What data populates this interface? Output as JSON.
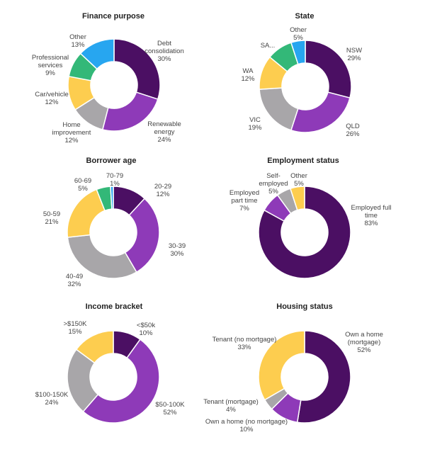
{
  "chart_data": [
    {
      "type": "donut",
      "title": "Finance purpose",
      "slices": [
        {
          "label": "Debt consolidation",
          "pct": 30,
          "value_text": "30%",
          "color": "#4b0f63",
          "label_lines": [
            "Debt",
            "consolidation",
            "30%"
          ]
        },
        {
          "label": "Renewable energy",
          "pct": 24,
          "value_text": "24%",
          "color": "#8e3ab8",
          "label_lines": [
            "Renewable",
            "energy",
            "24%"
          ]
        },
        {
          "label": "Home improvement",
          "pct": 12,
          "value_text": "12%",
          "color": "#a8a6a9",
          "label_lines": [
            "Home",
            "improvement",
            "12%"
          ]
        },
        {
          "label": "Car/vehicle",
          "pct": 12,
          "value_text": "12%",
          "color": "#fdcd4f",
          "label_lines": [
            "Car/vehicle",
            "12%"
          ]
        },
        {
          "label": "Professional services",
          "pct": 9,
          "value_text": "9%",
          "color": "#33b878",
          "label_lines": [
            "Professional",
            "services",
            "9%"
          ]
        },
        {
          "label": "Other",
          "pct": 13,
          "value_text": "13%",
          "color": "#27a6f0",
          "label_lines": [
            "Other",
            "13%"
          ]
        }
      ]
    },
    {
      "type": "donut",
      "title": "State",
      "slices": [
        {
          "label": "NSW",
          "pct": 29,
          "value_text": "29%",
          "color": "#4b0f63",
          "label_lines": [
            "NSW",
            "29%"
          ]
        },
        {
          "label": "QLD",
          "pct": 26,
          "value_text": "26%",
          "color": "#8e3ab8",
          "label_lines": [
            "QLD",
            "26%"
          ]
        },
        {
          "label": "VIC",
          "pct": 19,
          "value_text": "19%",
          "color": "#a8a6a9",
          "label_lines": [
            "VIC",
            "19%"
          ]
        },
        {
          "label": "WA",
          "pct": 12,
          "value_text": "12%",
          "color": "#fdcd4f",
          "label_lines": [
            "WA",
            "12%"
          ]
        },
        {
          "label": "SA...",
          "pct": 9,
          "value_text": "",
          "color": "#33b878",
          "label_lines": [
            "SA..."
          ]
        },
        {
          "label": "Other",
          "pct": 5,
          "value_text": "5%",
          "color": "#27a6f0",
          "label_lines": [
            "Other",
            "5%"
          ]
        }
      ]
    },
    {
      "type": "donut",
      "title": "Borrower age",
      "slices": [
        {
          "label": "20-29",
          "pct": 12,
          "value_text": "12%",
          "color": "#4b0f63",
          "label_lines": [
            "20-29",
            "12%"
          ]
        },
        {
          "label": "30-39",
          "pct": 30,
          "value_text": "30%",
          "color": "#8e3ab8",
          "label_lines": [
            "30-39",
            "30%"
          ]
        },
        {
          "label": "40-49",
          "pct": 32,
          "value_text": "32%",
          "color": "#a8a6a9",
          "label_lines": [
            "40-49",
            "32%"
          ]
        },
        {
          "label": "50-59",
          "pct": 21,
          "value_text": "21%",
          "color": "#fdcd4f",
          "label_lines": [
            "50-59",
            "21%"
          ]
        },
        {
          "label": "60-69",
          "pct": 5,
          "value_text": "5%",
          "color": "#33b878",
          "label_lines": [
            "60-69",
            "5%"
          ]
        },
        {
          "label": "70-79",
          "pct": 1,
          "value_text": "1%",
          "color": "#27a6f0",
          "label_lines": [
            "70-79",
            "1%"
          ]
        }
      ]
    },
    {
      "type": "donut",
      "title": "Employment status",
      "slices": [
        {
          "label": "Employed full time",
          "pct": 83,
          "value_text": "83%",
          "color": "#4b0f63",
          "label_lines": [
            "Employed full",
            "time",
            "83%"
          ]
        },
        {
          "label": "Employed part time",
          "pct": 7,
          "value_text": "7%",
          "color": "#8e3ab8",
          "label_lines": [
            "Employed",
            "part time",
            "7%"
          ]
        },
        {
          "label": "Self-employed",
          "pct": 5,
          "value_text": "5%",
          "color": "#a8a6a9",
          "label_lines": [
            "Self-",
            "employed",
            "5%"
          ]
        },
        {
          "label": "Other",
          "pct": 5,
          "value_text": "5%",
          "color": "#fdcd4f",
          "label_lines": [
            "Other",
            "5%"
          ]
        }
      ]
    },
    {
      "type": "donut",
      "title": "Income bracket",
      "slices": [
        {
          "label": "<$50k",
          "pct": 10,
          "value_text": "10%",
          "color": "#4b0f63",
          "label_lines": [
            "<$50k",
            "10%"
          ]
        },
        {
          "label": "$50-100K",
          "pct": 52,
          "value_text": "52%",
          "color": "#8e3ab8",
          "label_lines": [
            "$50-100K",
            "52%"
          ]
        },
        {
          "label": "$100-150K",
          "pct": 24,
          "value_text": "24%",
          "color": "#a8a6a9",
          "label_lines": [
            "$100-150K",
            "24%"
          ]
        },
        {
          "label": ">$150K",
          "pct": 15,
          "value_text": "15%",
          "color": "#fdcd4f",
          "label_lines": [
            ">$150K",
            "15%"
          ]
        }
      ]
    },
    {
      "type": "donut",
      "title": "Housing status",
      "slices": [
        {
          "label": "Own a home (mortgage)",
          "pct": 52,
          "value_text": "52%",
          "color": "#4b0f63",
          "label_lines": [
            "Own a home",
            "(mortgage)",
            "52%"
          ]
        },
        {
          "label": "Own a home (no mortgage)",
          "pct": 10,
          "value_text": "10%",
          "color": "#8e3ab8",
          "label_lines": [
            "Own a home (no mortgage)",
            "10%"
          ]
        },
        {
          "label": "Tenant (mortgage)",
          "pct": 4,
          "value_text": "4%",
          "color": "#a8a6a9",
          "label_lines": [
            "Tenant (mortgage)",
            "4%"
          ]
        },
        {
          "label": "Tenant (no mortgage)",
          "pct": 33,
          "value_text": "33%",
          "color": "#fdcd4f",
          "label_lines": [
            "Tenant (no mortgage)",
            "33%"
          ]
        }
      ]
    }
  ]
}
